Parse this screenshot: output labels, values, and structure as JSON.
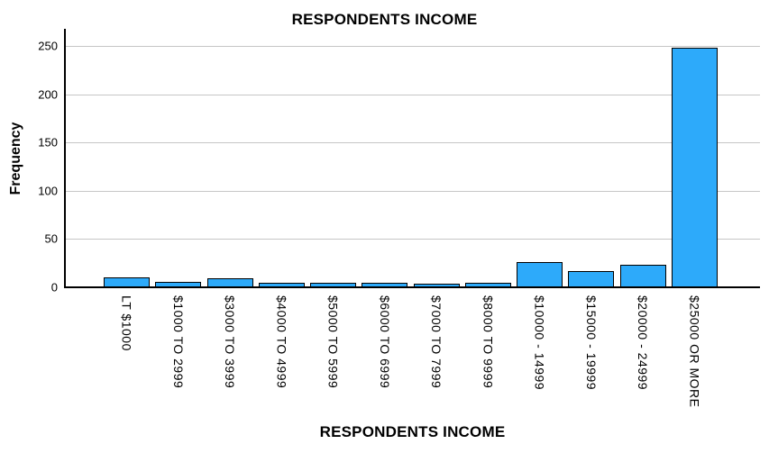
{
  "chart_data": {
    "type": "bar",
    "title": "RESPONDENTS INCOME",
    "xlabel": "RESPONDENTS INCOME",
    "ylabel": "Frequency",
    "categories": [
      "LT $1000",
      "$1000 TO 2999",
      "$3000 TO 3999",
      "$4000 TO 4999",
      "$5000 TO 5999",
      "$6000 TO 6999",
      "$7000 TO 7999",
      "$8000 TO 9999",
      "$10000 - 14999",
      "$15000 - 19999",
      "$20000 - 24999",
      "$25000 OR MORE"
    ],
    "values": [
      10,
      6,
      9,
      5,
      5,
      5,
      4,
      5,
      26,
      17,
      23,
      248
    ],
    "yticks": [
      0,
      50,
      100,
      150,
      200,
      250
    ],
    "ylim": [
      0,
      250
    ],
    "grid": "horizontal-only",
    "legend": "none",
    "colors": {
      "bar_fill": "#2DAAFA",
      "bar_border": "#000000",
      "gridline": "#C6C6C6",
      "axis": "#000000",
      "text": "#000000",
      "background": "#FFFFFF"
    }
  }
}
